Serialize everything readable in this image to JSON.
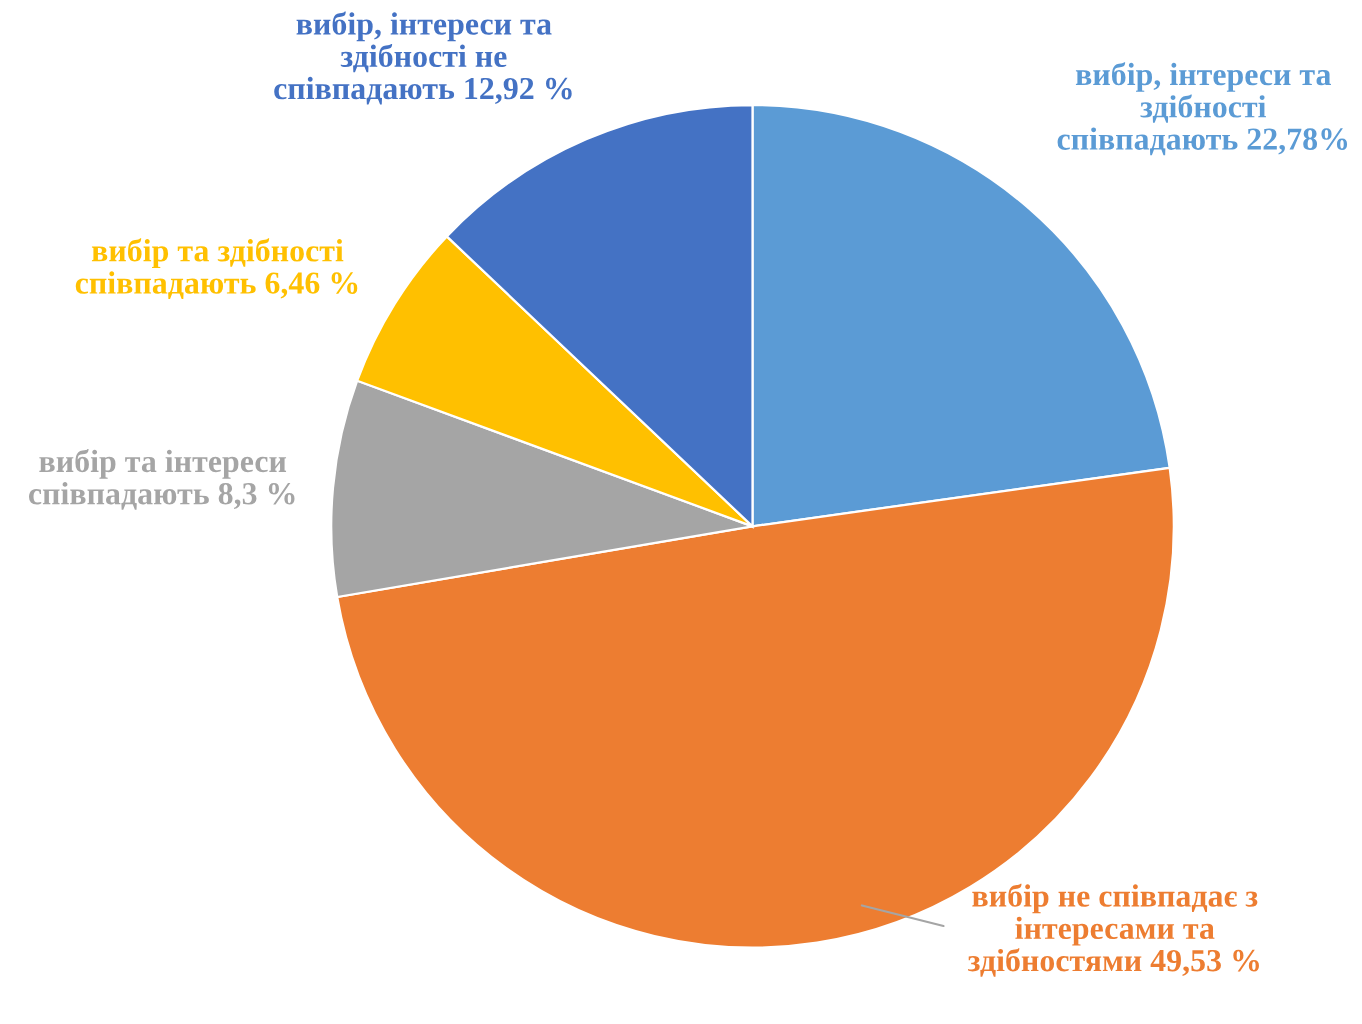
{
  "chart_data": {
    "type": "pie",
    "categories": [
      "вибір, інтереси та\nздібності\nспівпадають",
      "вибір не співпадає з\nінтересами та\nздібностями",
      "вибір та інтереси\nспівпадають",
      "вибір та здібності\nспівпадають",
      "вибір, інтереси та\nздібності не\nспівпадають"
    ],
    "values": [
      22.78,
      49.53,
      8.3,
      6.46,
      12.92
    ],
    "value_labels": [
      "22,78%",
      "49,53 %",
      "8,3 %",
      "6,46 %",
      "12,92 %"
    ],
    "colors": [
      "#5b9bd5",
      "#ed7d31",
      "#a5a5a5",
      "#ffc000",
      "#4472c4"
    ]
  }
}
